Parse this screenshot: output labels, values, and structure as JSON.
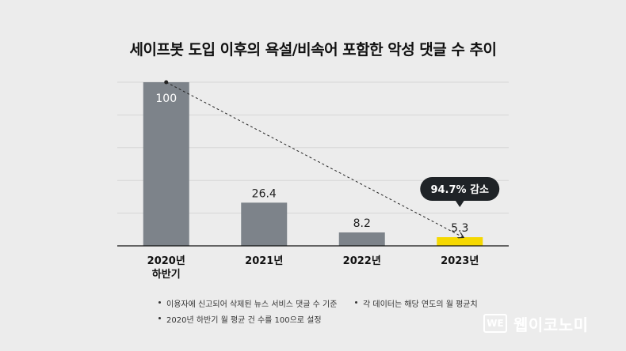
{
  "chart_data": {
    "type": "bar",
    "title": "세이프봇 도입 이후의 욕설/비속어 포함한 악성 댓글 수 추이",
    "categories": [
      "2020년\n하반기",
      "2021년",
      "2022년",
      "2023년"
    ],
    "values": [
      100,
      26.4,
      8.2,
      5.3
    ],
    "value_labels": [
      "100",
      "26.4",
      "8.2",
      "5.3"
    ],
    "ylim": [
      0,
      100
    ],
    "grid": true,
    "xlabel": "",
    "ylabel": "",
    "bar_colors": [
      "#7d838a",
      "#7d838a",
      "#7d838a",
      "#f5d800"
    ],
    "trend_line": {
      "from_index": 0,
      "to_index": 3,
      "style": "dashed-arrow"
    },
    "annotation": {
      "text": "94.7% 감소",
      "category_index": 3
    }
  },
  "notes": [
    "이용자에 신고되어 삭제된 뉴스 서비스 댓글 수 기준",
    "각 데이터는 해당 연도의 월 평균치",
    "2020년 하반기 월 평균 건 수를 100으로 설정"
  ],
  "brand": {
    "mark": "WE",
    "name": "웹이코노미"
  }
}
